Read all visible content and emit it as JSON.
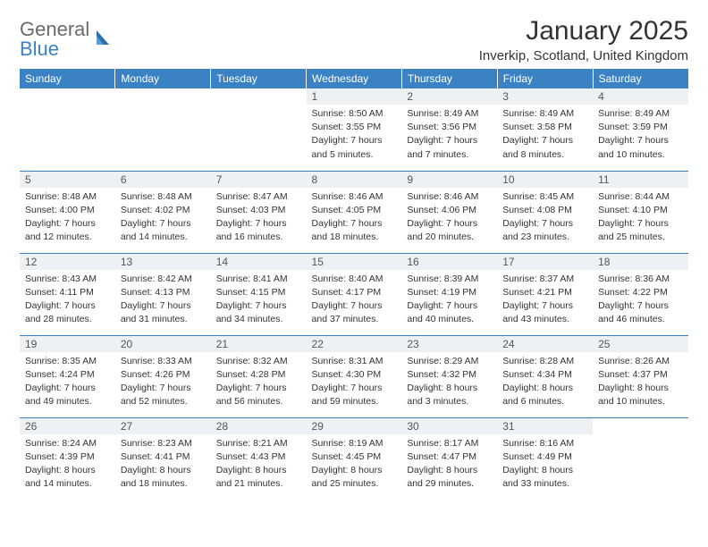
{
  "logo": {
    "line1": "General",
    "line2": "Blue"
  },
  "title": "January 2025",
  "location": "Inverkip, Scotland, United Kingdom",
  "colors": {
    "header_bg": "#3b82c4",
    "header_text": "#ffffff",
    "daynum_bg": "#eef1f4",
    "row_border": "#3b82c4",
    "text": "#333333",
    "logo_gray": "#6b6b6b",
    "logo_blue": "#3b82c4"
  },
  "day_headers": [
    "Sunday",
    "Monday",
    "Tuesday",
    "Wednesday",
    "Thursday",
    "Friday",
    "Saturday"
  ],
  "weeks": [
    [
      {
        "day": "",
        "sunrise": "",
        "sunset": "",
        "daylight": ""
      },
      {
        "day": "",
        "sunrise": "",
        "sunset": "",
        "daylight": ""
      },
      {
        "day": "",
        "sunrise": "",
        "sunset": "",
        "daylight": ""
      },
      {
        "day": "1",
        "sunrise": "Sunrise: 8:50 AM",
        "sunset": "Sunset: 3:55 PM",
        "daylight": "Daylight: 7 hours and 5 minutes."
      },
      {
        "day": "2",
        "sunrise": "Sunrise: 8:49 AM",
        "sunset": "Sunset: 3:56 PM",
        "daylight": "Daylight: 7 hours and 7 minutes."
      },
      {
        "day": "3",
        "sunrise": "Sunrise: 8:49 AM",
        "sunset": "Sunset: 3:58 PM",
        "daylight": "Daylight: 7 hours and 8 minutes."
      },
      {
        "day": "4",
        "sunrise": "Sunrise: 8:49 AM",
        "sunset": "Sunset: 3:59 PM",
        "daylight": "Daylight: 7 hours and 10 minutes."
      }
    ],
    [
      {
        "day": "5",
        "sunrise": "Sunrise: 8:48 AM",
        "sunset": "Sunset: 4:00 PM",
        "daylight": "Daylight: 7 hours and 12 minutes."
      },
      {
        "day": "6",
        "sunrise": "Sunrise: 8:48 AM",
        "sunset": "Sunset: 4:02 PM",
        "daylight": "Daylight: 7 hours and 14 minutes."
      },
      {
        "day": "7",
        "sunrise": "Sunrise: 8:47 AM",
        "sunset": "Sunset: 4:03 PM",
        "daylight": "Daylight: 7 hours and 16 minutes."
      },
      {
        "day": "8",
        "sunrise": "Sunrise: 8:46 AM",
        "sunset": "Sunset: 4:05 PM",
        "daylight": "Daylight: 7 hours and 18 minutes."
      },
      {
        "day": "9",
        "sunrise": "Sunrise: 8:46 AM",
        "sunset": "Sunset: 4:06 PM",
        "daylight": "Daylight: 7 hours and 20 minutes."
      },
      {
        "day": "10",
        "sunrise": "Sunrise: 8:45 AM",
        "sunset": "Sunset: 4:08 PM",
        "daylight": "Daylight: 7 hours and 23 minutes."
      },
      {
        "day": "11",
        "sunrise": "Sunrise: 8:44 AM",
        "sunset": "Sunset: 4:10 PM",
        "daylight": "Daylight: 7 hours and 25 minutes."
      }
    ],
    [
      {
        "day": "12",
        "sunrise": "Sunrise: 8:43 AM",
        "sunset": "Sunset: 4:11 PM",
        "daylight": "Daylight: 7 hours and 28 minutes."
      },
      {
        "day": "13",
        "sunrise": "Sunrise: 8:42 AM",
        "sunset": "Sunset: 4:13 PM",
        "daylight": "Daylight: 7 hours and 31 minutes."
      },
      {
        "day": "14",
        "sunrise": "Sunrise: 8:41 AM",
        "sunset": "Sunset: 4:15 PM",
        "daylight": "Daylight: 7 hours and 34 minutes."
      },
      {
        "day": "15",
        "sunrise": "Sunrise: 8:40 AM",
        "sunset": "Sunset: 4:17 PM",
        "daylight": "Daylight: 7 hours and 37 minutes."
      },
      {
        "day": "16",
        "sunrise": "Sunrise: 8:39 AM",
        "sunset": "Sunset: 4:19 PM",
        "daylight": "Daylight: 7 hours and 40 minutes."
      },
      {
        "day": "17",
        "sunrise": "Sunrise: 8:37 AM",
        "sunset": "Sunset: 4:21 PM",
        "daylight": "Daylight: 7 hours and 43 minutes."
      },
      {
        "day": "18",
        "sunrise": "Sunrise: 8:36 AM",
        "sunset": "Sunset: 4:22 PM",
        "daylight": "Daylight: 7 hours and 46 minutes."
      }
    ],
    [
      {
        "day": "19",
        "sunrise": "Sunrise: 8:35 AM",
        "sunset": "Sunset: 4:24 PM",
        "daylight": "Daylight: 7 hours and 49 minutes."
      },
      {
        "day": "20",
        "sunrise": "Sunrise: 8:33 AM",
        "sunset": "Sunset: 4:26 PM",
        "daylight": "Daylight: 7 hours and 52 minutes."
      },
      {
        "day": "21",
        "sunrise": "Sunrise: 8:32 AM",
        "sunset": "Sunset: 4:28 PM",
        "daylight": "Daylight: 7 hours and 56 minutes."
      },
      {
        "day": "22",
        "sunrise": "Sunrise: 8:31 AM",
        "sunset": "Sunset: 4:30 PM",
        "daylight": "Daylight: 7 hours and 59 minutes."
      },
      {
        "day": "23",
        "sunrise": "Sunrise: 8:29 AM",
        "sunset": "Sunset: 4:32 PM",
        "daylight": "Daylight: 8 hours and 3 minutes."
      },
      {
        "day": "24",
        "sunrise": "Sunrise: 8:28 AM",
        "sunset": "Sunset: 4:34 PM",
        "daylight": "Daylight: 8 hours and 6 minutes."
      },
      {
        "day": "25",
        "sunrise": "Sunrise: 8:26 AM",
        "sunset": "Sunset: 4:37 PM",
        "daylight": "Daylight: 8 hours and 10 minutes."
      }
    ],
    [
      {
        "day": "26",
        "sunrise": "Sunrise: 8:24 AM",
        "sunset": "Sunset: 4:39 PM",
        "daylight": "Daylight: 8 hours and 14 minutes."
      },
      {
        "day": "27",
        "sunrise": "Sunrise: 8:23 AM",
        "sunset": "Sunset: 4:41 PM",
        "daylight": "Daylight: 8 hours and 18 minutes."
      },
      {
        "day": "28",
        "sunrise": "Sunrise: 8:21 AM",
        "sunset": "Sunset: 4:43 PM",
        "daylight": "Daylight: 8 hours and 21 minutes."
      },
      {
        "day": "29",
        "sunrise": "Sunrise: 8:19 AM",
        "sunset": "Sunset: 4:45 PM",
        "daylight": "Daylight: 8 hours and 25 minutes."
      },
      {
        "day": "30",
        "sunrise": "Sunrise: 8:17 AM",
        "sunset": "Sunset: 4:47 PM",
        "daylight": "Daylight: 8 hours and 29 minutes."
      },
      {
        "day": "31",
        "sunrise": "Sunrise: 8:16 AM",
        "sunset": "Sunset: 4:49 PM",
        "daylight": "Daylight: 8 hours and 33 minutes."
      },
      {
        "day": "",
        "sunrise": "",
        "sunset": "",
        "daylight": ""
      }
    ]
  ]
}
